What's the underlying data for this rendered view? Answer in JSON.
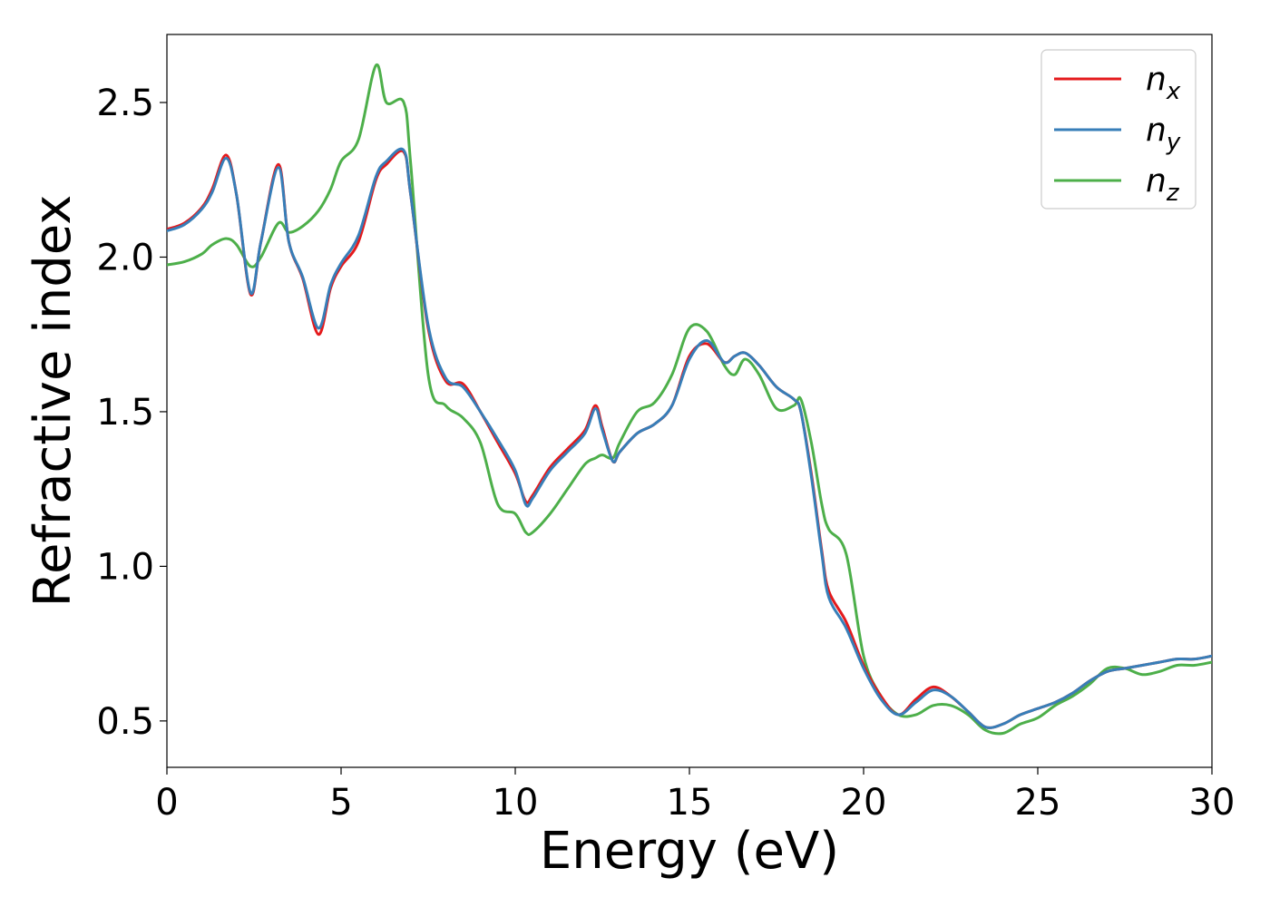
{
  "chart_data": {
    "type": "line",
    "xlabel": "Energy (eV)",
    "ylabel": "Refractive index",
    "xlim": [
      0,
      30
    ],
    "ylim": [
      0.35,
      2.72
    ],
    "xticks": [
      0,
      5,
      10,
      15,
      20,
      25,
      30
    ],
    "yticks": [
      0.5,
      1.0,
      1.5,
      2.0,
      2.5
    ],
    "grid": false,
    "legend_position": "top-right",
    "x": [
      0,
      0.5,
      1,
      1.3,
      1.7,
      2,
      2.4,
      2.7,
      3.2,
      3.5,
      3.9,
      4.35,
      4.7,
      5.0,
      5.5,
      6.0,
      6.3,
      6.8,
      7.0,
      7.5,
      8.0,
      8.5,
      9.0,
      9.5,
      10.0,
      10.3,
      10.5,
      11.0,
      11.5,
      12.0,
      12.3,
      12.5,
      12.8,
      13.0,
      13.5,
      14.0,
      14.5,
      15.0,
      15.5,
      16.0,
      16.3,
      16.6,
      17.0,
      17.5,
      18.0,
      18.2,
      18.5,
      18.8,
      19.0,
      19.5,
      20.0,
      20.5,
      21.0,
      21.5,
      22.0,
      22.5,
      23.0,
      23.5,
      24.0,
      24.5,
      25.0,
      25.5,
      26.0,
      26.5,
      27.0,
      27.5,
      28.0,
      28.5,
      29.0,
      29.5,
      30.0
    ],
    "series": [
      {
        "name": "n_x",
        "legend_base": "n",
        "legend_sub": "x",
        "color": "#e41a1c",
        "values": [
          2.09,
          2.11,
          2.16,
          2.22,
          2.33,
          2.2,
          1.88,
          2.05,
          2.3,
          2.05,
          1.93,
          1.75,
          1.9,
          1.97,
          2.05,
          2.25,
          2.3,
          2.34,
          2.2,
          1.77,
          1.6,
          1.59,
          1.5,
          1.4,
          1.3,
          1.21,
          1.23,
          1.32,
          1.38,
          1.44,
          1.52,
          1.45,
          1.34,
          1.37,
          1.43,
          1.46,
          1.52,
          1.68,
          1.72,
          1.66,
          1.68,
          1.69,
          1.65,
          1.58,
          1.54,
          1.5,
          1.3,
          1.05,
          0.92,
          0.82,
          0.68,
          0.58,
          0.52,
          0.57,
          0.61,
          0.58,
          0.53,
          0.48,
          0.49,
          0.52,
          0.54,
          0.56,
          0.59,
          0.63,
          0.66,
          0.67,
          0.68,
          0.69,
          0.7,
          0.7,
          0.71
        ]
      },
      {
        "name": "n_y",
        "legend_base": "n",
        "legend_sub": "y",
        "color": "#377eb8",
        "values": [
          2.085,
          2.105,
          2.155,
          2.21,
          2.32,
          2.2,
          1.885,
          2.05,
          2.29,
          2.05,
          1.935,
          1.77,
          1.91,
          1.98,
          2.07,
          2.26,
          2.31,
          2.345,
          2.2,
          1.78,
          1.61,
          1.58,
          1.5,
          1.41,
          1.31,
          1.2,
          1.22,
          1.31,
          1.37,
          1.43,
          1.51,
          1.44,
          1.34,
          1.37,
          1.43,
          1.46,
          1.52,
          1.67,
          1.73,
          1.66,
          1.68,
          1.69,
          1.65,
          1.58,
          1.54,
          1.5,
          1.29,
          1.04,
          0.9,
          0.8,
          0.67,
          0.57,
          0.52,
          0.56,
          0.6,
          0.58,
          0.53,
          0.48,
          0.49,
          0.52,
          0.54,
          0.56,
          0.59,
          0.63,
          0.66,
          0.67,
          0.68,
          0.69,
          0.7,
          0.7,
          0.71
        ]
      },
      {
        "name": "n_z",
        "legend_base": "n",
        "legend_sub": "z",
        "color": "#4daf4a",
        "values": [
          1.975,
          1.985,
          2.01,
          2.04,
          2.06,
          2.04,
          1.97,
          2.0,
          2.11,
          2.08,
          2.1,
          2.15,
          2.22,
          2.31,
          2.38,
          2.62,
          2.5,
          2.5,
          2.3,
          1.62,
          1.52,
          1.48,
          1.4,
          1.2,
          1.17,
          1.11,
          1.11,
          1.17,
          1.25,
          1.33,
          1.35,
          1.36,
          1.35,
          1.4,
          1.5,
          1.53,
          1.62,
          1.77,
          1.76,
          1.65,
          1.62,
          1.67,
          1.62,
          1.51,
          1.52,
          1.54,
          1.4,
          1.2,
          1.12,
          1.04,
          0.71,
          0.58,
          0.52,
          0.52,
          0.55,
          0.55,
          0.52,
          0.47,
          0.46,
          0.49,
          0.51,
          0.55,
          0.58,
          0.62,
          0.67,
          0.67,
          0.65,
          0.66,
          0.68,
          0.68,
          0.69
        ]
      }
    ]
  }
}
